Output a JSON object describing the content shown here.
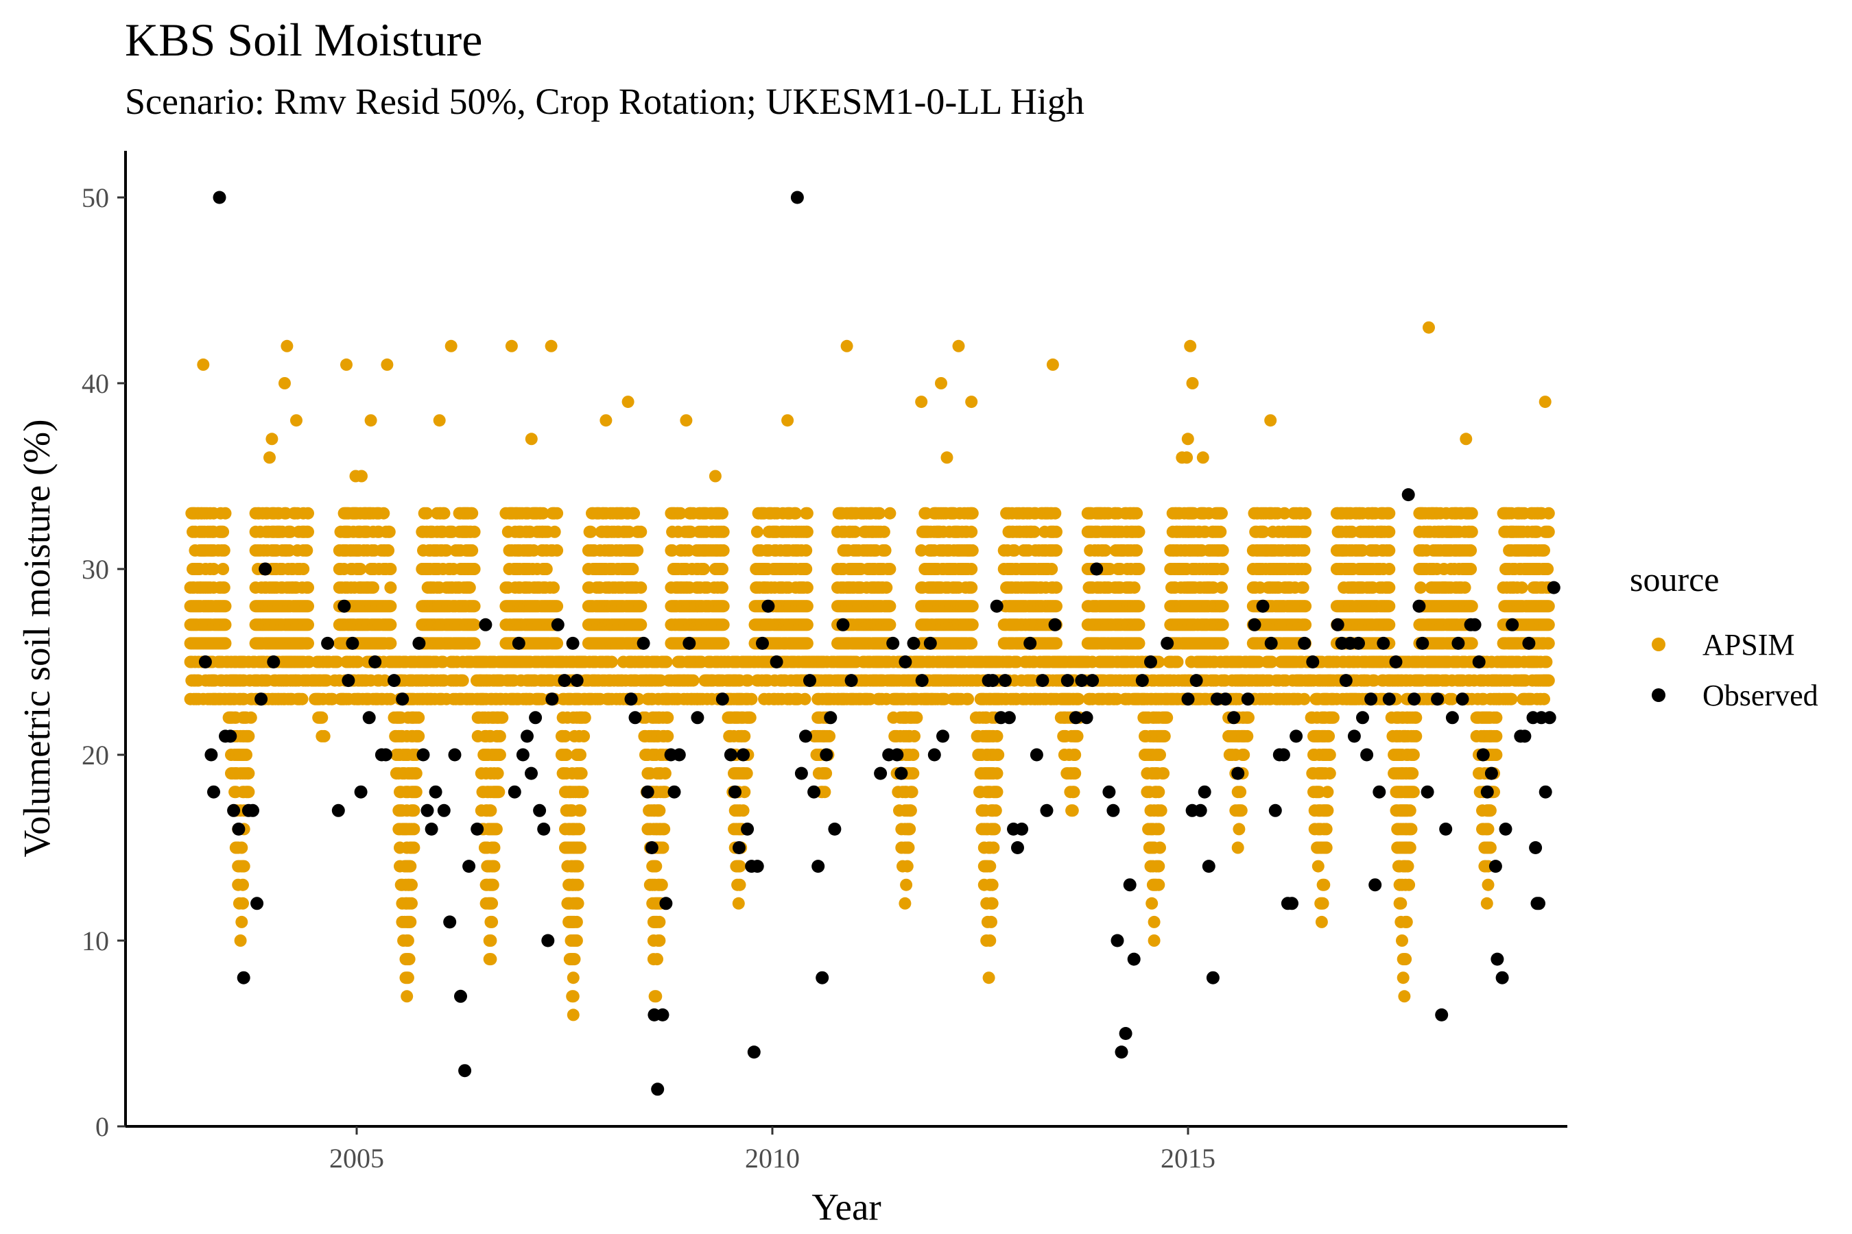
{
  "chart_data": {
    "type": "scatter",
    "title": "KBS Soil Moisture",
    "subtitle": "Scenario: Rmv Resid 50%, Crop Rotation; UKESM1-0-LL High",
    "xlabel": "Year",
    "ylabel": "Volumetric soil moisture (%)",
    "xlim": [
      2002.7,
      2019.2
    ],
    "ylim": [
      0,
      52
    ],
    "x_ticks": [
      2005,
      2010,
      2015
    ],
    "y_ticks": [
      0,
      10,
      20,
      30,
      40,
      50
    ],
    "x_tick_labels": [
      "2005",
      "2010",
      "2015"
    ],
    "y_tick_labels": [
      "0",
      "10",
      "20",
      "30",
      "40",
      "50"
    ],
    "grid": false,
    "legend": {
      "title": "source",
      "position": "right",
      "entries": [
        {
          "label": "APSIM",
          "color": "#E69F00"
        },
        {
          "label": "Observed",
          "color": "#000000"
        }
      ]
    },
    "apsim_seasonal_pattern": {
      "description_years": [
        2003,
        2004,
        2005,
        2006,
        2007,
        2008,
        2009,
        2010,
        2011,
        2012,
        2013,
        2014,
        2015,
        2016,
        2017,
        2018
      ],
      "winter_band": [
        23,
        33
      ],
      "summer_minimum_by_year": [
        10,
        21,
        6,
        8,
        5,
        6,
        12,
        17,
        12,
        8,
        16,
        9,
        15,
        10,
        7,
        12
      ],
      "peak_by_year": [
        42,
        43,
        43,
        44,
        43,
        44,
        41,
        43,
        42,
        44,
        42,
        44,
        43,
        43,
        44,
        39
      ]
    },
    "series": [
      {
        "name": "Observed",
        "color": "#000000",
        "points": [
          [
            2003.18,
            25
          ],
          [
            2003.25,
            20
          ],
          [
            2003.28,
            18
          ],
          [
            2003.35,
            50
          ],
          [
            2003.42,
            21
          ],
          [
            2003.48,
            21
          ],
          [
            2003.52,
            17
          ],
          [
            2003.58,
            16
          ],
          [
            2003.64,
            8
          ],
          [
            2003.7,
            17
          ],
          [
            2003.75,
            17
          ],
          [
            2003.8,
            12
          ],
          [
            2003.85,
            23
          ],
          [
            2003.9,
            30
          ],
          [
            2004.0,
            25
          ],
          [
            2004.65,
            26
          ],
          [
            2004.78,
            17
          ],
          [
            2004.85,
            28
          ],
          [
            2004.9,
            24
          ],
          [
            2004.95,
            26
          ],
          [
            2005.05,
            18
          ],
          [
            2005.15,
            22
          ],
          [
            2005.22,
            25
          ],
          [
            2005.3,
            20
          ],
          [
            2005.35,
            20
          ],
          [
            2005.45,
            24
          ],
          [
            2005.55,
            23
          ],
          [
            2005.75,
            26
          ],
          [
            2005.8,
            20
          ],
          [
            2005.85,
            17
          ],
          [
            2005.9,
            16
          ],
          [
            2005.95,
            18
          ],
          [
            2006.05,
            17
          ],
          [
            2006.12,
            11
          ],
          [
            2006.18,
            20
          ],
          [
            2006.25,
            7
          ],
          [
            2006.3,
            3
          ],
          [
            2006.35,
            14
          ],
          [
            2006.45,
            16
          ],
          [
            2006.55,
            27
          ],
          [
            2006.9,
            18
          ],
          [
            2006.95,
            26
          ],
          [
            2007.0,
            20
          ],
          [
            2007.05,
            21
          ],
          [
            2007.1,
            19
          ],
          [
            2007.15,
            22
          ],
          [
            2007.2,
            17
          ],
          [
            2007.25,
            16
          ],
          [
            2007.3,
            10
          ],
          [
            2007.35,
            23
          ],
          [
            2007.42,
            27
          ],
          [
            2007.5,
            24
          ],
          [
            2007.6,
            26
          ],
          [
            2007.65,
            24
          ],
          [
            2008.3,
            23
          ],
          [
            2008.35,
            22
          ],
          [
            2008.45,
            26
          ],
          [
            2008.5,
            18
          ],
          [
            2008.55,
            15
          ],
          [
            2008.58,
            6
          ],
          [
            2008.62,
            2
          ],
          [
            2008.68,
            6
          ],
          [
            2008.72,
            12
          ],
          [
            2008.78,
            20
          ],
          [
            2008.82,
            18
          ],
          [
            2008.88,
            20
          ],
          [
            2009.0,
            26
          ],
          [
            2009.1,
            22
          ],
          [
            2009.4,
            23
          ],
          [
            2009.5,
            20
          ],
          [
            2009.55,
            18
          ],
          [
            2009.6,
            15
          ],
          [
            2009.65,
            20
          ],
          [
            2009.7,
            16
          ],
          [
            2009.75,
            14
          ],
          [
            2009.78,
            4
          ],
          [
            2009.82,
            14
          ],
          [
            2009.88,
            26
          ],
          [
            2009.95,
            28
          ],
          [
            2010.05,
            25
          ],
          [
            2010.3,
            50
          ],
          [
            2010.35,
            19
          ],
          [
            2010.4,
            21
          ],
          [
            2010.45,
            24
          ],
          [
            2010.5,
            18
          ],
          [
            2010.55,
            14
          ],
          [
            2010.6,
            8
          ],
          [
            2010.65,
            20
          ],
          [
            2010.7,
            22
          ],
          [
            2010.75,
            16
          ],
          [
            2010.85,
            27
          ],
          [
            2010.95,
            24
          ],
          [
            2011.3,
            19
          ],
          [
            2011.4,
            20
          ],
          [
            2011.45,
            26
          ],
          [
            2011.5,
            20
          ],
          [
            2011.55,
            19
          ],
          [
            2011.6,
            25
          ],
          [
            2011.7,
            26
          ],
          [
            2011.8,
            24
          ],
          [
            2011.9,
            26
          ],
          [
            2011.95,
            20
          ],
          [
            2012.05,
            21
          ],
          [
            2012.6,
            24
          ],
          [
            2012.65,
            24
          ],
          [
            2012.7,
            28
          ],
          [
            2012.75,
            22
          ],
          [
            2012.8,
            24
          ],
          [
            2012.85,
            22
          ],
          [
            2012.9,
            16
          ],
          [
            2012.95,
            15
          ],
          [
            2013.0,
            16
          ],
          [
            2013.1,
            26
          ],
          [
            2013.18,
            20
          ],
          [
            2013.25,
            24
          ],
          [
            2013.3,
            17
          ],
          [
            2013.4,
            27
          ],
          [
            2013.55,
            24
          ],
          [
            2013.65,
            22
          ],
          [
            2013.72,
            24
          ],
          [
            2013.78,
            22
          ],
          [
            2013.85,
            24
          ],
          [
            2013.9,
            30
          ],
          [
            2014.05,
            18
          ],
          [
            2014.1,
            17
          ],
          [
            2014.15,
            10
          ],
          [
            2014.2,
            4
          ],
          [
            2014.25,
            5
          ],
          [
            2014.3,
            13
          ],
          [
            2014.35,
            9
          ],
          [
            2014.45,
            24
          ],
          [
            2014.55,
            25
          ],
          [
            2014.75,
            26
          ],
          [
            2015.0,
            23
          ],
          [
            2015.05,
            17
          ],
          [
            2015.1,
            24
          ],
          [
            2015.15,
            17
          ],
          [
            2015.2,
            18
          ],
          [
            2015.25,
            14
          ],
          [
            2015.3,
            8
          ],
          [
            2015.35,
            23
          ],
          [
            2015.45,
            23
          ],
          [
            2015.55,
            22
          ],
          [
            2015.6,
            19
          ],
          [
            2015.72,
            23
          ],
          [
            2015.8,
            27
          ],
          [
            2015.9,
            28
          ],
          [
            2016.0,
            26
          ],
          [
            2016.05,
            17
          ],
          [
            2016.1,
            20
          ],
          [
            2016.15,
            20
          ],
          [
            2016.2,
            12
          ],
          [
            2016.25,
            12
          ],
          [
            2016.3,
            21
          ],
          [
            2016.4,
            26
          ],
          [
            2016.5,
            25
          ],
          [
            2016.8,
            27
          ],
          [
            2016.85,
            26
          ],
          [
            2016.9,
            24
          ],
          [
            2016.95,
            26
          ],
          [
            2017.0,
            21
          ],
          [
            2017.05,
            26
          ],
          [
            2017.1,
            22
          ],
          [
            2017.15,
            20
          ],
          [
            2017.2,
            23
          ],
          [
            2017.25,
            13
          ],
          [
            2017.3,
            18
          ],
          [
            2017.35,
            26
          ],
          [
            2017.42,
            23
          ],
          [
            2017.5,
            25
          ],
          [
            2017.65,
            34
          ],
          [
            2017.72,
            23
          ],
          [
            2017.78,
            28
          ],
          [
            2017.82,
            26
          ],
          [
            2017.88,
            18
          ],
          [
            2018.0,
            23
          ],
          [
            2018.05,
            6
          ],
          [
            2018.1,
            16
          ],
          [
            2018.18,
            22
          ],
          [
            2018.25,
            26
          ],
          [
            2018.3,
            23
          ],
          [
            2018.4,
            27
          ],
          [
            2018.45,
            27
          ],
          [
            2018.5,
            25
          ],
          [
            2018.55,
            20
          ],
          [
            2018.6,
            18
          ],
          [
            2018.65,
            19
          ],
          [
            2018.7,
            14
          ],
          [
            2018.72,
            9
          ],
          [
            2018.78,
            8
          ],
          [
            2018.82,
            16
          ],
          [
            2018.9,
            27
          ],
          [
            2019.0,
            21
          ],
          [
            2019.05,
            21
          ],
          [
            2019.1,
            26
          ],
          [
            2019.15,
            22
          ],
          [
            2019.18,
            15
          ],
          [
            2019.2,
            12
          ],
          [
            2019.22,
            12
          ],
          [
            2019.25,
            22
          ],
          [
            2019.3,
            18
          ],
          [
            2019.35,
            22
          ],
          [
            2019.4,
            29
          ]
        ]
      },
      {
        "name": "APSIM",
        "color": "#E69F00",
        "generated_from": "apsim_seasonal_pattern"
      }
    ]
  }
}
